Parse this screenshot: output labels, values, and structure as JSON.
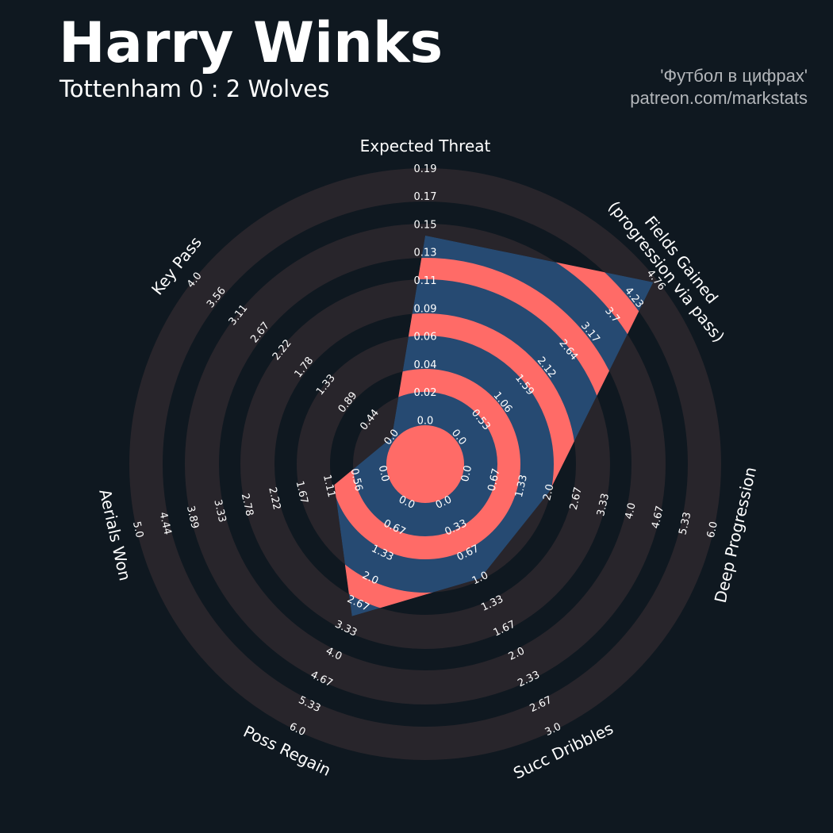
{
  "header": {
    "title": "Harry Winks",
    "subtitle": "Tottenham 0 : 2 Wolves",
    "credit_line1": "'Футбол в цифрах'",
    "credit_line2": "patreon.com/markstats"
  },
  "chart_data": {
    "type": "radar",
    "colors": {
      "background": "#0f1820",
      "rings": "#28252b",
      "polygon": "#264a72",
      "polygon_alt": "#ff6b67",
      "text": "#ffffff"
    },
    "params": [
      {
        "label": "Expected Threat",
        "value": 0.14,
        "ticks": [
          "0.0",
          "0.02",
          "0.04",
          "0.06",
          "0.09",
          "0.11",
          "0.13",
          "0.15",
          "0.17",
          "0.19"
        ],
        "range": [
          0,
          0.19
        ]
      },
      {
        "label": "Fields Gained\n(progression via pass)",
        "value": 4.7,
        "ticks": [
          "0.0",
          "0.53",
          "1.06",
          "1.59",
          "2.12",
          "2.64",
          "3.17",
          "3.7",
          "4.23",
          "4.76"
        ],
        "range": [
          0,
          4.76
        ]
      },
      {
        "label": "Deep Progression",
        "value": 2.0,
        "ticks": [
          "0.0",
          "0.67",
          "1.33",
          "2.0",
          "2.67",
          "3.33",
          "4.0",
          "4.67",
          "5.33",
          "6.0"
        ],
        "range": [
          0,
          6.0
        ]
      },
      {
        "label": "Succ Dribbles",
        "value": 1.0,
        "ticks": [
          "0.0",
          "0.33",
          "0.67",
          "1.0",
          "1.33",
          "1.67",
          "2.0",
          "2.33",
          "2.67",
          "3.0"
        ],
        "range": [
          0,
          3.0
        ]
      },
      {
        "label": "Poss Regain",
        "value": 3.0,
        "ticks": [
          "0.0",
          "0.67",
          "1.33",
          "2.0",
          "2.67",
          "3.33",
          "4.0",
          "4.67",
          "5.33",
          "6.0"
        ],
        "range": [
          0,
          6.0
        ]
      },
      {
        "label": "Aerials Won",
        "value": 1.0,
        "ticks": [
          "0.0",
          "0.56",
          "1.11",
          "1.67",
          "2.22",
          "2.78",
          "3.33",
          "3.89",
          "4.44",
          "5.0"
        ],
        "range": [
          0,
          5.0
        ]
      },
      {
        "label": "Key Pass",
        "value": 0.0,
        "ticks": [
          "0.0",
          "0.44",
          "0.89",
          "1.33",
          "1.78",
          "2.22",
          "2.67",
          "3.11",
          "3.56",
          "4.0"
        ],
        "range": [
          0,
          4.0
        ]
      }
    ]
  }
}
